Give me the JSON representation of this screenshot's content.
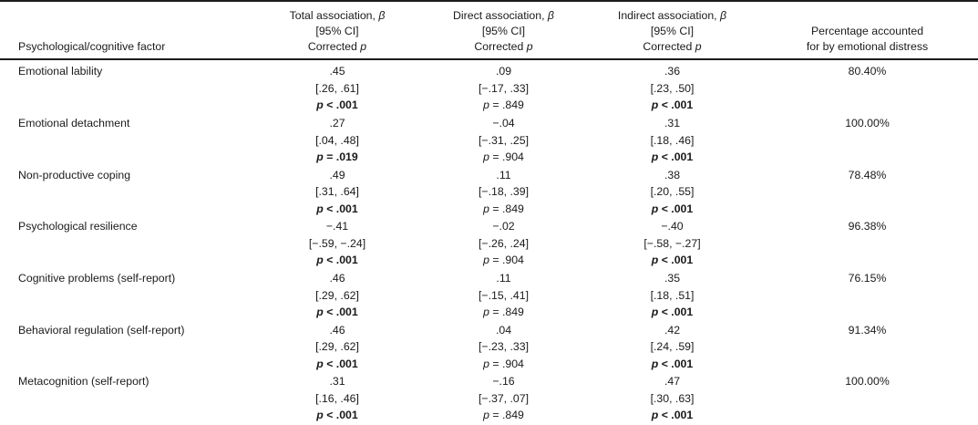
{
  "strings": {
    "p_var": "p",
    "beta": "β"
  },
  "table": {
    "header": {
      "factor": "Psychological/cognitive factor",
      "total_label": "Total association,",
      "direct_label": "Direct association,",
      "indirect_label": "Indirect association,",
      "ci_label": "[95% CI]",
      "corrected_label": "Corrected",
      "pct_line1": "Percentage accounted",
      "pct_line2": "for by emotional distress"
    },
    "rows": [
      {
        "factor": "Emotional lability",
        "total": {
          "beta": ".45",
          "ci": "[.26, .61]",
          "p_rest": "< .001",
          "sig": true
        },
        "direct": {
          "beta": ".09",
          "ci": "[−.17, .33]",
          "p_rest": "= .849",
          "sig": false
        },
        "indirect": {
          "beta": ".36",
          "ci": "[.23, .50]",
          "p_rest": "< .001",
          "sig": true
        },
        "pct": "80.40%"
      },
      {
        "factor": "Emotional detachment",
        "total": {
          "beta": ".27",
          "ci": "[.04, .48]",
          "p_rest": "= .019",
          "sig": true
        },
        "direct": {
          "beta": "−.04",
          "ci": "[−.31, .25]",
          "p_rest": "= .904",
          "sig": false
        },
        "indirect": {
          "beta": ".31",
          "ci": "[.18, .46]",
          "p_rest": "< .001",
          "sig": true
        },
        "pct": "100.00%"
      },
      {
        "factor": "Non-productive coping",
        "total": {
          "beta": ".49",
          "ci": "[.31, .64]",
          "p_rest": "< .001",
          "sig": true
        },
        "direct": {
          "beta": ".11",
          "ci": "[−.18, .39]",
          "p_rest": "= .849",
          "sig": false
        },
        "indirect": {
          "beta": ".38",
          "ci": "[.20, .55]",
          "p_rest": "< .001",
          "sig": true
        },
        "pct": "78.48%"
      },
      {
        "factor": "Psychological resilience",
        "total": {
          "beta": "−.41",
          "ci": "[−.59, −.24]",
          "p_rest": "< .001",
          "sig": true
        },
        "direct": {
          "beta": "−.02",
          "ci": "[−.26, .24]",
          "p_rest": "= .904",
          "sig": false
        },
        "indirect": {
          "beta": "−.40",
          "ci": "[−.58, −.27]",
          "p_rest": "< .001",
          "sig": true
        },
        "pct": "96.38%"
      },
      {
        "factor": "Cognitive problems (self-report)",
        "total": {
          "beta": ".46",
          "ci": "[.29, .62]",
          "p_rest": "< .001",
          "sig": true
        },
        "direct": {
          "beta": ".11",
          "ci": "[−.15, .41]",
          "p_rest": "= .849",
          "sig": false
        },
        "indirect": {
          "beta": ".35",
          "ci": "[.18, .51]",
          "p_rest": "< .001",
          "sig": true
        },
        "pct": "76.15%"
      },
      {
        "factor": "Behavioral regulation (self-report)",
        "total": {
          "beta": ".46",
          "ci": "[.29, .62]",
          "p_rest": "< .001",
          "sig": true
        },
        "direct": {
          "beta": ".04",
          "ci": "[−.23, .33]",
          "p_rest": "= .904",
          "sig": false
        },
        "indirect": {
          "beta": ".42",
          "ci": "[.24, .59]",
          "p_rest": "< .001",
          "sig": true
        },
        "pct": "91.34%"
      },
      {
        "factor": "Metacognition (self-report)",
        "total": {
          "beta": ".31",
          "ci": "[.16, .46]",
          "p_rest": "< .001",
          "sig": true
        },
        "direct": {
          "beta": "−.16",
          "ci": "[−.37, .07]",
          "p_rest": "= .849",
          "sig": false
        },
        "indirect": {
          "beta": ".47",
          "ci": "[.30, .63]",
          "p_rest": "< .001",
          "sig": true
        },
        "pct": "100.00%"
      }
    ]
  }
}
